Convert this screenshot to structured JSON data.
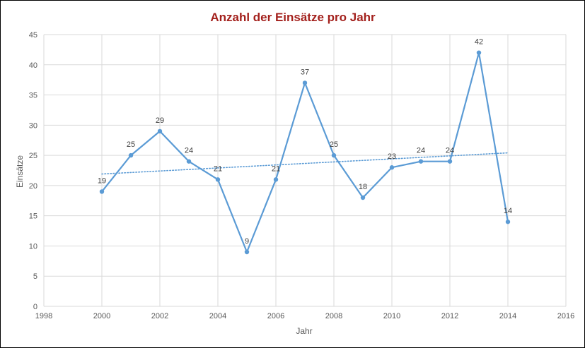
{
  "chart_data": {
    "type": "scatter",
    "title": "Anzahl der Einsätze pro Jahr",
    "xlabel": "Jahr",
    "ylabel": "Einsätze",
    "xlim": [
      1998,
      2016
    ],
    "ylim": [
      0,
      45
    ],
    "xticks": [
      1998,
      2000,
      2002,
      2004,
      2006,
      2008,
      2010,
      2012,
      2014,
      2016
    ],
    "yticks": [
      0,
      5,
      10,
      15,
      20,
      25,
      30,
      35,
      40,
      45
    ],
    "grid": true,
    "legend": "none",
    "series_color": "#5b9bd5",
    "trendline": {
      "type": "linear",
      "style": "dotted",
      "x_range": [
        2000,
        2014
      ]
    },
    "series": [
      {
        "x": [
          2000,
          2001,
          2002,
          2003,
          2004,
          2005,
          2006,
          2007,
          2008,
          2009,
          2010,
          2011,
          2012,
          2013,
          2014
        ],
        "y": [
          19,
          25,
          29,
          24,
          21,
          9,
          21,
          37,
          25,
          18,
          23,
          24,
          24,
          42,
          14
        ],
        "data_labels": [
          "19",
          "25",
          "29",
          "24",
          "21",
          "9",
          "21",
          "37",
          "25",
          "18",
          "23",
          "24",
          "24",
          "42",
          "14"
        ]
      }
    ]
  }
}
